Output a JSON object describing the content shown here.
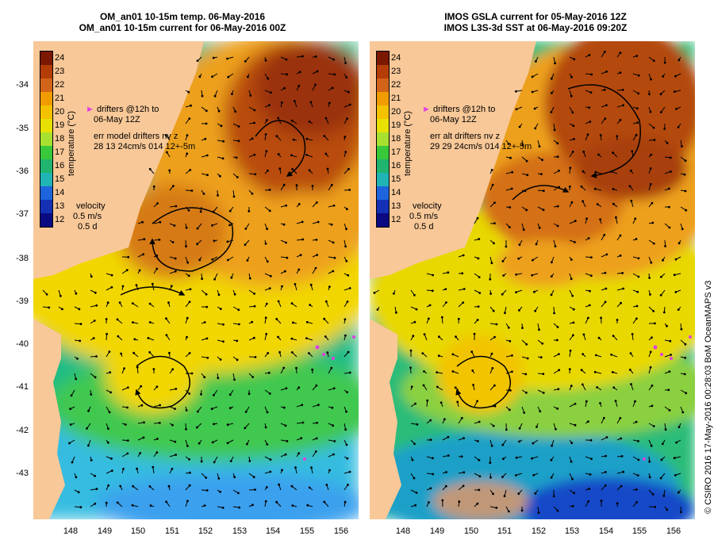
{
  "left_panel": {
    "title_line1": "OM_an01 10-15m temp. 06-May-2016",
    "title_line2": "OM_an01 10-15m current for 06-May-2016 00Z",
    "drifters_line1": "drifters @12h to",
    "drifters_line2": "06-May 12Z",
    "err_line1": "err model drifters nv z",
    "err_line2": "28 13 24cm/s 014 12+-5m"
  },
  "right_panel": {
    "title_line1": "IMOS GSLA current for 05-May-2016 12Z",
    "title_line2": "IMOS L3S-3d SST at 06-May-2016 09:20Z",
    "drifters_line1": "drifters @12h to",
    "drifters_line2": "06-May 12Z",
    "err_line1": "err alt drifters nv z",
    "err_line2": "29 29 24cm/s 014 12+-5m"
  },
  "velocity_legend": {
    "label": "velocity",
    "speed": "0.5 m/s",
    "duration": "0.5 d"
  },
  "colorbar": {
    "title": "temperature (°C)",
    "ticks": [
      "24",
      "23",
      "22",
      "21",
      "20",
      "19",
      "18",
      "17",
      "16",
      "15",
      "14",
      "13",
      "12"
    ],
    "colors": [
      "#7a1800",
      "#b43c06",
      "#d2641a",
      "#f09c00",
      "#f5c200",
      "#e8e000",
      "#a8e030",
      "#38c83a",
      "#20b46e",
      "#20b4b4",
      "#1e64dc",
      "#1430b4",
      "#0a0a82"
    ]
  },
  "axes": {
    "lat_ticks": [
      "-34",
      "-35",
      "-36",
      "-37",
      "-38",
      "-39",
      "-40",
      "-41",
      "-42",
      "-43"
    ],
    "lon_ticks": [
      "148",
      "149",
      "150",
      "151",
      "152",
      "153",
      "154",
      "155",
      "156"
    ]
  },
  "credit": "© CSIRO 2016   17-May-2016 00:28:03 BoM OceanMAPS v3",
  "colors": {
    "land": "#f8c898",
    "warm_core": "#b4480c",
    "orange": "#eda01a",
    "yellow": "#f2d600",
    "green": "#40c850",
    "teal": "#1ebc86",
    "blue": "#3aa6ee",
    "deep_blue": "#1848c8",
    "drifter": "#e040e0"
  }
}
